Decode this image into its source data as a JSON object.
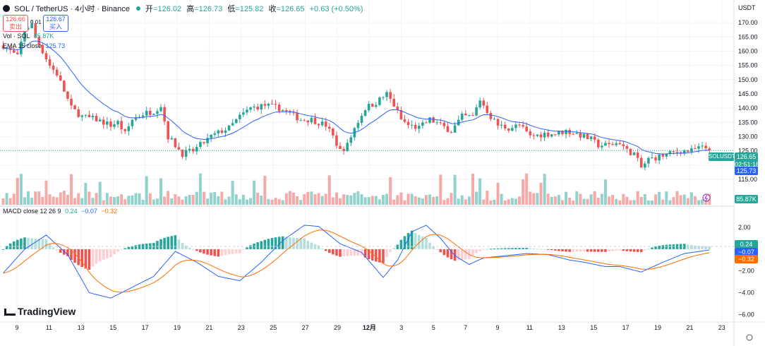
{
  "header": {
    "symbol": "SOL / TetherUS · 4小时 · Binance",
    "open_label": "开",
    "open_value": "=126.02",
    "high_label": "高",
    "high_value": "=126.73",
    "low_label": "低",
    "low_value": "=125.82",
    "close_label": "收",
    "close_value": "=126.65",
    "change": "+0.63 (+0.50%)",
    "currency": "USDT"
  },
  "trade": {
    "sell_price": "126.66",
    "sell_label": "卖出",
    "spread": "0.01",
    "buy_price": "126.67",
    "buy_label": "买入"
  },
  "indicators": {
    "vol_label": "Vol · SOL",
    "vol_value": "85.87K",
    "ema_label": "EMA 15 close",
    "ema_value": "125.73",
    "macd_label": "MACD close 12 26 9",
    "macd_v1": "0.24",
    "macd_v2": "−0.07",
    "macd_v3": "−0.32"
  },
  "price_tags": {
    "symbol": "SOLUSDT",
    "price": "126.65",
    "countdown": "02:51:18",
    "ema": "125.73",
    "vol": "85.87K",
    "macd_hist": "0.24",
    "macd_line": "−0.07",
    "signal_line": "−0.32"
  },
  "logo": "TradingView",
  "colors": {
    "up": "#26a69a",
    "down": "#ef5350",
    "ema": "#2962ff",
    "macd": "#2962ff",
    "signal": "#ff6d00"
  },
  "chart_data": {
    "type": "candlestick",
    "y_axis_ticks": [
      "170.00",
      "165.00",
      "160.00",
      "155.00",
      "150.00",
      "145.00",
      "140.00",
      "135.00",
      "130.00",
      "125.00",
      "120.00",
      "115.00"
    ],
    "ylim": [
      113,
      173
    ],
    "x_axis_ticks": [
      "9",
      "11",
      "13",
      "15",
      "17",
      "19",
      "21",
      "23",
      "25",
      "27",
      "29",
      "12月",
      "3",
      "5",
      "7",
      "9",
      "11",
      "13",
      "15",
      "17",
      "19",
      "21",
      "23"
    ],
    "price_path": [
      [
        0,
        162
      ],
      [
        2,
        160
      ],
      [
        4,
        158
      ],
      [
        6,
        168
      ],
      [
        8,
        169
      ],
      [
        9,
        165
      ],
      [
        11,
        160
      ],
      [
        13,
        155
      ],
      [
        15,
        152
      ],
      [
        17,
        146
      ],
      [
        19,
        140
      ],
      [
        22,
        137
      ],
      [
        26,
        136
      ],
      [
        30,
        134
      ],
      [
        32,
        135
      ],
      [
        34,
        131
      ],
      [
        36,
        136
      ],
      [
        39,
        138
      ],
      [
        42,
        139
      ],
      [
        44,
        141
      ],
      [
        46,
        130
      ],
      [
        48,
        127
      ],
      [
        50,
        124
      ],
      [
        53,
        125
      ],
      [
        56,
        128
      ],
      [
        58,
        130
      ],
      [
        61,
        132
      ],
      [
        63,
        133
      ],
      [
        66,
        137
      ],
      [
        69,
        140
      ],
      [
        73,
        141
      ],
      [
        77,
        140
      ],
      [
        80,
        138
      ],
      [
        83,
        136
      ],
      [
        86,
        136
      ],
      [
        90,
        134
      ],
      [
        92,
        130
      ],
      [
        94,
        125
      ],
      [
        96,
        127
      ],
      [
        98,
        133
      ],
      [
        101,
        140
      ],
      [
        104,
        142
      ],
      [
        107,
        145
      ],
      [
        109,
        141
      ],
      [
        111,
        136
      ],
      [
        113,
        134
      ],
      [
        116,
        133
      ],
      [
        119,
        136
      ],
      [
        122,
        134
      ],
      [
        125,
        132
      ],
      [
        128,
        137
      ],
      [
        131,
        137
      ],
      [
        133,
        143
      ],
      [
        136,
        137
      ],
      [
        138,
        134
      ],
      [
        141,
        133
      ],
      [
        144,
        134
      ],
      [
        147,
        130
      ],
      [
        151,
        131
      ],
      [
        154,
        131
      ],
      [
        157,
        132
      ],
      [
        160,
        131
      ],
      [
        164,
        129
      ],
      [
        166,
        127
      ],
      [
        169,
        127
      ],
      [
        172,
        128
      ],
      [
        174,
        125
      ],
      [
        176,
        124
      ],
      [
        178,
        119
      ],
      [
        180,
        122
      ],
      [
        183,
        123
      ],
      [
        186,
        124
      ],
      [
        189,
        125
      ],
      [
        192,
        125
      ],
      [
        194,
        126
      ],
      [
        197,
        126
      ]
    ],
    "macd_ticks": [
      "2.00",
      "0.00",
      "−2.00",
      "−4.00",
      "−6.00"
    ],
    "macd_ylim": [
      -6.5,
      3.5
    ],
    "macd_path": [
      [
        0,
        -2.2
      ],
      [
        6,
        0
      ],
      [
        12,
        1.3
      ],
      [
        18,
        -0.5
      ],
      [
        24,
        -4
      ],
      [
        30,
        -4.5
      ],
      [
        36,
        -3.5
      ],
      [
        42,
        -2.5
      ],
      [
        48,
        -0.2
      ],
      [
        54,
        -1.2
      ],
      [
        60,
        -2.5
      ],
      [
        66,
        -2.9
      ],
      [
        72,
        -1.2
      ],
      [
        78,
        0.8
      ],
      [
        84,
        2.2
      ],
      [
        88,
        2.1
      ],
      [
        94,
        0.5
      ],
      [
        100,
        -0.3
      ],
      [
        106,
        -2.6
      ],
      [
        110,
        -1.0
      ],
      [
        114,
        1.6
      ],
      [
        118,
        2.2
      ],
      [
        122,
        1.0
      ],
      [
        126,
        -0.6
      ],
      [
        130,
        -1.4
      ],
      [
        134,
        -0.8
      ],
      [
        140,
        -0.6
      ],
      [
        146,
        -0.4
      ],
      [
        152,
        -0.5
      ],
      [
        158,
        -1.0
      ],
      [
        162,
        -1.2
      ],
      [
        168,
        -1.6
      ],
      [
        172,
        -1.6
      ],
      [
        178,
        -2.1
      ],
      [
        184,
        -1.2
      ],
      [
        190,
        -0.4
      ],
      [
        197,
        -0.07
      ]
    ]
  }
}
